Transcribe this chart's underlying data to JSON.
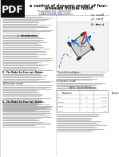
{
  "title": "e control of dynamic model of four-\n     wheeled mobile robot",
  "bg_color": "#ffffff",
  "pdf_bg": "#111111",
  "pdf_text": "#ffffff",
  "line_color_dark": "#888888",
  "line_color_light": "#bbbbbb",
  "text_dark": "#111111",
  "text_mid": "#555555",
  "text_light": "#999999"
}
